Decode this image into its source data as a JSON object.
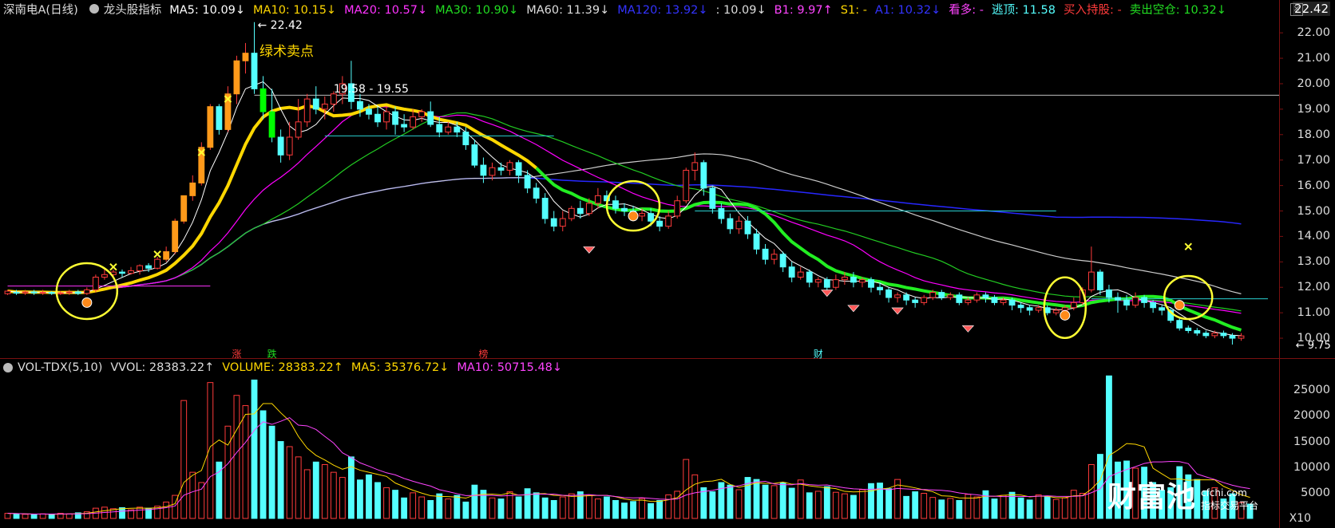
{
  "colors": {
    "up": "#ff3b3b",
    "down": "#54ffff",
    "ma5": "#ffffff",
    "ma10": "#ffd700",
    "ma20": "#ff00ff",
    "ma30": "#00ff00",
    "ma60": "#cccccc",
    "ma120": "#2727ff",
    "bg": "#000000"
  },
  "header": {
    "title": "深南电A(日线)",
    "indicator": "龙头股指标",
    "items": [
      {
        "text": "MA5: 10.09↓",
        "color": "#ffffff"
      },
      {
        "text": "MA10: 10.15↓",
        "color": "#ffd700"
      },
      {
        "text": "MA20: 10.57↓",
        "color": "#ff33ff"
      },
      {
        "text": "MA30: 10.90↓",
        "color": "#22dd22"
      },
      {
        "text": "MA60: 11.39↓",
        "color": "#dddddd"
      },
      {
        "text": "MA120: 13.92↓",
        "color": "#3333ff"
      },
      {
        "text": ": 10.09↓",
        "color": "#dddddd"
      },
      {
        "text": "B1: 9.97↑",
        "color": "#ff44ff"
      },
      {
        "text": "S1: -",
        "color": "#ffd700"
      },
      {
        "text": "A1: 10.32↓",
        "color": "#3333ff"
      },
      {
        "text": "看多: -",
        "color": "#ff44ff"
      },
      {
        "text": "逃顶: 11.58",
        "color": "#54ffff"
      },
      {
        "text": "买入持股: -",
        "color": "#ff3b3b"
      },
      {
        "text": "卖出空仓: 10.32↓",
        "color": "#22dd22"
      }
    ]
  },
  "volume_header": {
    "title": "VOL-TDX(5,10)",
    "items": [
      {
        "text": "VVOL: 28383.22↑",
        "color": "#dddddd"
      },
      {
        "text": "VOLUME: 28383.22↑",
        "color": "#ffd700"
      },
      {
        "text": "MA5: 35376.72↓",
        "color": "#ffd700"
      },
      {
        "text": "MA10: 50715.48↓",
        "color": "#ff44ff"
      }
    ]
  },
  "price_axis": {
    "max_label": "22.42",
    "ticks": [
      "22.00",
      "21.00",
      "20.00",
      "19.00",
      "18.00",
      "17.00",
      "16.00",
      "15.00",
      "14.00",
      "13.00",
      "12.00",
      "11.00",
      "10.00"
    ]
  },
  "volume_axis": {
    "ticks": [
      "25000",
      "20000",
      "15000",
      "10000",
      "5000"
    ],
    "unit": "X10"
  },
  "annotations": {
    "high": "22.42",
    "low": "9.75",
    "range": "19.58 - 19.55",
    "sell_signal": "绿术卖点",
    "markers": [
      "涨",
      "跌",
      "榜",
      "财"
    ]
  },
  "logo": {
    "main": "财富池",
    "domain": "cfchi.com",
    "subtitle": "指标交易平台"
  },
  "chart_data": {
    "type": "candlestick",
    "series_note": "daily OHLC with moving averages and volume",
    "ylim": [
      9.5,
      22.6
    ],
    "volume_ylim": [
      0,
      28000
    ],
    "candles": [
      [
        11.75,
        11.85,
        11.9,
        11.7
      ],
      [
        11.8,
        11.78,
        11.9,
        11.7
      ],
      [
        11.78,
        11.82,
        11.9,
        11.7
      ],
      [
        11.82,
        11.78,
        11.9,
        11.7
      ],
      [
        11.78,
        11.8,
        11.9,
        11.7
      ],
      [
        11.8,
        11.76,
        11.85,
        11.7
      ],
      [
        11.76,
        11.78,
        11.85,
        11.7
      ],
      [
        11.78,
        11.82,
        11.9,
        11.7
      ],
      [
        11.82,
        11.76,
        11.9,
        11.7
      ],
      [
        11.76,
        11.9,
        12.0,
        11.7
      ],
      [
        11.9,
        12.4,
        12.5,
        11.8
      ],
      [
        12.4,
        12.5,
        12.7,
        12.3
      ],
      [
        12.5,
        12.6,
        12.7,
        12.4
      ],
      [
        12.6,
        12.55,
        12.7,
        12.4
      ],
      [
        12.55,
        12.65,
        12.8,
        12.5
      ],
      [
        12.65,
        12.85,
        12.9,
        12.5
      ],
      [
        12.85,
        12.75,
        12.95,
        12.6
      ],
      [
        12.75,
        13.1,
        13.2,
        12.7
      ],
      [
        13.1,
        13.4,
        13.6,
        13.0
      ],
      [
        13.4,
        14.6,
        14.7,
        13.3
      ],
      [
        14.6,
        15.6,
        15.6,
        14.5
      ],
      [
        15.6,
        16.1,
        16.4,
        15.4
      ],
      [
        16.1,
        17.5,
        17.7,
        16.0
      ],
      [
        17.5,
        19.1,
        19.2,
        17.4
      ],
      [
        19.1,
        18.2,
        19.2,
        18.0
      ],
      [
        18.2,
        19.6,
        19.9,
        18.1
      ],
      [
        19.6,
        20.9,
        21.1,
        19.2
      ],
      [
        20.9,
        21.2,
        21.6,
        20.4
      ],
      [
        21.2,
        19.8,
        22.42,
        19.6
      ],
      [
        19.8,
        18.9,
        20.3,
        18.6
      ],
      [
        18.9,
        17.9,
        19.8,
        17.7
      ],
      [
        17.9,
        17.2,
        18.2,
        16.9
      ],
      [
        17.2,
        17.9,
        18.5,
        17.0
      ],
      [
        17.9,
        18.5,
        19.4,
        17.8
      ],
      [
        18.5,
        19.4,
        19.6,
        18.3
      ],
      [
        19.4,
        19.0,
        19.9,
        18.8
      ],
      [
        19.0,
        19.2,
        19.5,
        18.6
      ],
      [
        19.2,
        19.6,
        19.7,
        18.9
      ],
      [
        19.6,
        20.0,
        20.3,
        19.2
      ],
      [
        20.0,
        19.3,
        20.9,
        19.0
      ],
      [
        19.3,
        19.0,
        19.6,
        18.7
      ],
      [
        19.0,
        18.8,
        19.2,
        18.6
      ],
      [
        18.8,
        18.5,
        19.1,
        18.3
      ],
      [
        18.5,
        18.9,
        19.1,
        18.2
      ],
      [
        18.9,
        18.4,
        19.1,
        18.0
      ],
      [
        18.4,
        18.3,
        18.8,
        18.1
      ],
      [
        18.3,
        18.7,
        19.0,
        18.2
      ],
      [
        18.7,
        18.9,
        19.0,
        18.5
      ],
      [
        18.9,
        18.4,
        19.3,
        18.3
      ],
      [
        18.4,
        18.1,
        18.7,
        17.9
      ],
      [
        18.1,
        18.3,
        18.5,
        18.0
      ],
      [
        18.3,
        18.1,
        18.5,
        17.9
      ],
      [
        18.1,
        17.6,
        18.3,
        17.4
      ],
      [
        17.6,
        16.8,
        17.8,
        16.7
      ],
      [
        16.8,
        16.4,
        17.1,
        16.1
      ],
      [
        16.4,
        16.7,
        16.9,
        16.2
      ],
      [
        16.7,
        16.6,
        16.9,
        16.4
      ],
      [
        16.6,
        16.9,
        17.0,
        16.4
      ],
      [
        16.9,
        16.4,
        17.0,
        16.1
      ],
      [
        16.4,
        15.9,
        16.6,
        15.7
      ],
      [
        15.9,
        15.5,
        16.1,
        15.3
      ],
      [
        15.5,
        14.7,
        15.7,
        14.5
      ],
      [
        14.7,
        14.4,
        15.0,
        14.2
      ],
      [
        14.4,
        14.7,
        15.0,
        14.2
      ],
      [
        14.7,
        15.1,
        15.2,
        14.6
      ],
      [
        15.1,
        14.9,
        15.4,
        14.7
      ],
      [
        14.9,
        15.3,
        15.5,
        14.8
      ],
      [
        15.3,
        15.6,
        15.9,
        15.1
      ],
      [
        15.6,
        15.4,
        15.8,
        15.1
      ],
      [
        15.4,
        15.1,
        15.6,
        14.9
      ],
      [
        15.1,
        15.0,
        15.3,
        14.8
      ],
      [
        15.0,
        14.8,
        15.2,
        14.6
      ],
      [
        14.8,
        14.9,
        15.1,
        14.6
      ],
      [
        14.9,
        14.6,
        15.1,
        14.4
      ],
      [
        14.6,
        14.4,
        14.8,
        14.2
      ],
      [
        14.4,
        14.8,
        15.0,
        14.3
      ],
      [
        14.8,
        15.4,
        15.6,
        14.7
      ],
      [
        15.4,
        16.6,
        16.7,
        15.3
      ],
      [
        16.6,
        16.9,
        17.3,
        16.2
      ],
      [
        16.9,
        15.9,
        17.0,
        15.6
      ],
      [
        15.9,
        15.1,
        16.0,
        14.9
      ],
      [
        15.1,
        14.7,
        15.3,
        14.5
      ],
      [
        14.7,
        14.3,
        14.9,
        14.1
      ],
      [
        14.3,
        14.6,
        14.8,
        14.1
      ],
      [
        14.6,
        14.1,
        14.8,
        13.9
      ],
      [
        14.1,
        13.5,
        14.3,
        13.3
      ],
      [
        13.5,
        13.1,
        13.7,
        12.9
      ],
      [
        13.1,
        13.3,
        13.5,
        12.9
      ],
      [
        13.3,
        12.8,
        13.4,
        12.6
      ],
      [
        12.8,
        12.4,
        13.0,
        12.2
      ],
      [
        12.4,
        12.6,
        12.8,
        12.3
      ],
      [
        12.6,
        12.2,
        12.7,
        12.0
      ],
      [
        12.2,
        12.3,
        12.4,
        12.0
      ],
      [
        12.3,
        12.0,
        12.4,
        11.8
      ],
      [
        12.0,
        12.3,
        12.5,
        11.9
      ],
      [
        12.3,
        12.4,
        12.6,
        12.1
      ],
      [
        12.4,
        12.2,
        12.6,
        12.0
      ],
      [
        12.2,
        12.3,
        12.4,
        12.0
      ],
      [
        12.3,
        12.0,
        12.4,
        11.8
      ],
      [
        12.0,
        11.9,
        12.2,
        11.7
      ],
      [
        11.9,
        11.6,
        12.0,
        11.4
      ],
      [
        11.6,
        11.7,
        11.8,
        11.4
      ],
      [
        11.7,
        11.5,
        11.8,
        11.3
      ],
      [
        11.5,
        11.4,
        11.6,
        11.2
      ],
      [
        11.4,
        11.6,
        11.7,
        11.3
      ],
      [
        11.6,
        11.8,
        11.9,
        11.5
      ],
      [
        11.8,
        11.6,
        11.9,
        11.5
      ],
      [
        11.6,
        11.7,
        11.8,
        11.5
      ],
      [
        11.7,
        11.4,
        11.8,
        11.3
      ],
      [
        11.4,
        11.5,
        11.6,
        11.3
      ],
      [
        11.5,
        11.7,
        11.8,
        11.4
      ],
      [
        11.7,
        11.6,
        11.8,
        11.4
      ],
      [
        11.6,
        11.4,
        11.7,
        11.3
      ],
      [
        11.4,
        11.5,
        11.6,
        11.3
      ],
      [
        11.5,
        11.3,
        11.6,
        11.1
      ],
      [
        11.3,
        11.2,
        11.4,
        11.0
      ],
      [
        11.2,
        11.1,
        11.3,
        10.9
      ],
      [
        11.1,
        11.2,
        11.3,
        11.0
      ],
      [
        11.2,
        11.0,
        11.3,
        10.9
      ],
      [
        11.0,
        11.1,
        11.2,
        10.9
      ],
      [
        11.1,
        11.2,
        11.3,
        11.0
      ],
      [
        11.2,
        11.4,
        11.6,
        11.1
      ],
      [
        11.4,
        11.9,
        12.0,
        11.3
      ],
      [
        11.9,
        12.6,
        13.6,
        11.8
      ],
      [
        12.6,
        11.9,
        12.7,
        11.7
      ],
      [
        11.9,
        11.6,
        12.1,
        11.4
      ],
      [
        11.6,
        11.5,
        11.8,
        11.0
      ],
      [
        11.5,
        11.3,
        11.7,
        11.1
      ],
      [
        11.3,
        11.6,
        11.8,
        11.2
      ],
      [
        11.6,
        11.4,
        11.7,
        11.2
      ],
      [
        11.4,
        11.2,
        11.5,
        11.0
      ],
      [
        11.2,
        11.1,
        11.3,
        10.9
      ],
      [
        11.1,
        10.7,
        11.2,
        10.6
      ],
      [
        10.7,
        10.4,
        10.8,
        10.3
      ],
      [
        10.4,
        10.3,
        10.5,
        10.2
      ],
      [
        10.3,
        10.2,
        10.4,
        10.1
      ],
      [
        10.2,
        10.1,
        10.3,
        10.0
      ],
      [
        10.1,
        10.2,
        10.3,
        10.0
      ],
      [
        10.2,
        10.1,
        10.3,
        10.0
      ],
      [
        10.1,
        10.0,
        10.2,
        9.75
      ],
      [
        10.0,
        10.09,
        10.2,
        9.9
      ]
    ],
    "volume": [
      1000,
      900,
      800,
      700,
      900,
      800,
      1000,
      900,
      1100,
      1300,
      2000,
      2200,
      1900,
      2100,
      1700,
      2200,
      2000,
      2400,
      3200,
      4500,
      23000,
      9000,
      7000,
      26500,
      11000,
      18000,
      24000,
      22000,
      27000,
      21000,
      18000,
      15000,
      14000,
      12000,
      9500,
      11000,
      10500,
      9000,
      8000,
      12000,
      7500,
      8500,
      7000,
      6000,
      5500,
      4000,
      5000,
      4200,
      3500,
      4800,
      3800,
      4500,
      3200,
      6500,
      5500,
      4000,
      3800,
      5200,
      4200,
      5800,
      5000,
      4000,
      3500,
      4200,
      4800,
      5200,
      4500,
      3800,
      4200,
      3500,
      3000,
      3300,
      3900,
      2900,
      3500,
      4600,
      5300,
      11500,
      8500,
      6000,
      5200,
      7000,
      6500,
      5600,
      8000,
      7600,
      6500,
      6400,
      7000,
      5900,
      7500,
      5000,
      5300,
      6200,
      5100,
      4800,
      4500,
      5600,
      6800,
      6900,
      5800,
      7600,
      4300,
      5200,
      4900,
      4100,
      3600,
      3900,
      3500,
      4700,
      4200,
      5400,
      3800,
      4500,
      5100,
      4000,
      3600,
      4600,
      4300,
      3700,
      4000,
      5500,
      4900,
      10500,
      12500,
      27800,
      11000,
      11200,
      9800,
      10000,
      7000,
      5500,
      6000,
      10100,
      8500,
      7600,
      5400,
      6000,
      3800,
      4800,
      3100,
      2800
    ]
  }
}
